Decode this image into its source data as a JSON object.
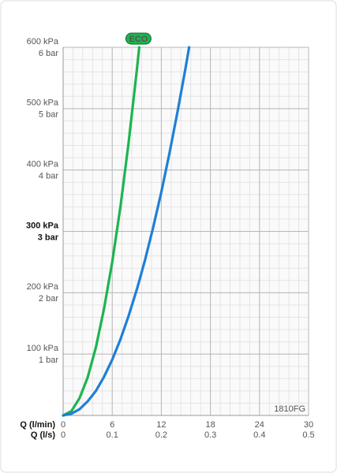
{
  "chart_data": {
    "type": "line",
    "annotations": {
      "eco": "ECO",
      "code": "1810FG"
    },
    "xlabel": "Q (l/min)",
    "x2label": "Q (l/s)",
    "x": [
      0,
      1,
      2,
      3,
      4,
      5,
      6,
      7,
      8,
      9,
      9.3,
      10,
      11,
      12,
      13,
      14,
      15,
      15.4
    ],
    "series": [
      {
        "name": "ECO",
        "color": "#1db450",
        "values": [
          0,
          7,
          28,
          62,
          111,
          174,
          250,
          340,
          444,
          562,
          600,
          null,
          null,
          null,
          null,
          null,
          null,
          null
        ]
      },
      {
        "color": "#1f7fd6",
        "values": [
          0,
          3,
          10,
          23,
          40,
          63,
          91,
          124,
          162,
          205,
          219,
          253,
          306,
          364,
          428,
          496,
          569,
          600
        ]
      }
    ],
    "xlim": [
      0,
      30
    ],
    "xticks": [
      0,
      6,
      12,
      18,
      24,
      30
    ],
    "x2lim": [
      0,
      0.5
    ],
    "x2ticks": [
      0,
      0.1,
      0.2,
      0.3,
      0.4,
      0.5
    ],
    "ylim": [
      0,
      600
    ],
    "yticks": [
      {
        "value": 100,
        "label": "100 kPa"
      },
      {
        "value": 200,
        "label": "200 kPa"
      },
      {
        "value": 300,
        "label": "300 kPa"
      },
      {
        "value": 400,
        "label": "400 kPa"
      },
      {
        "value": 500,
        "label": "500 kPa"
      },
      {
        "value": 600,
        "label": "600 kPa"
      }
    ],
    "yticks_bar": [
      {
        "value": 100,
        "label": "1 bar"
      },
      {
        "value": 200,
        "label": "2 bar"
      },
      {
        "value": 300,
        "label": "3 bar"
      },
      {
        "value": 400,
        "label": "4 bar"
      },
      {
        "value": 500,
        "label": "5 bar"
      },
      {
        "value": 600,
        "label": "6 bar"
      }
    ],
    "grid": true
  }
}
